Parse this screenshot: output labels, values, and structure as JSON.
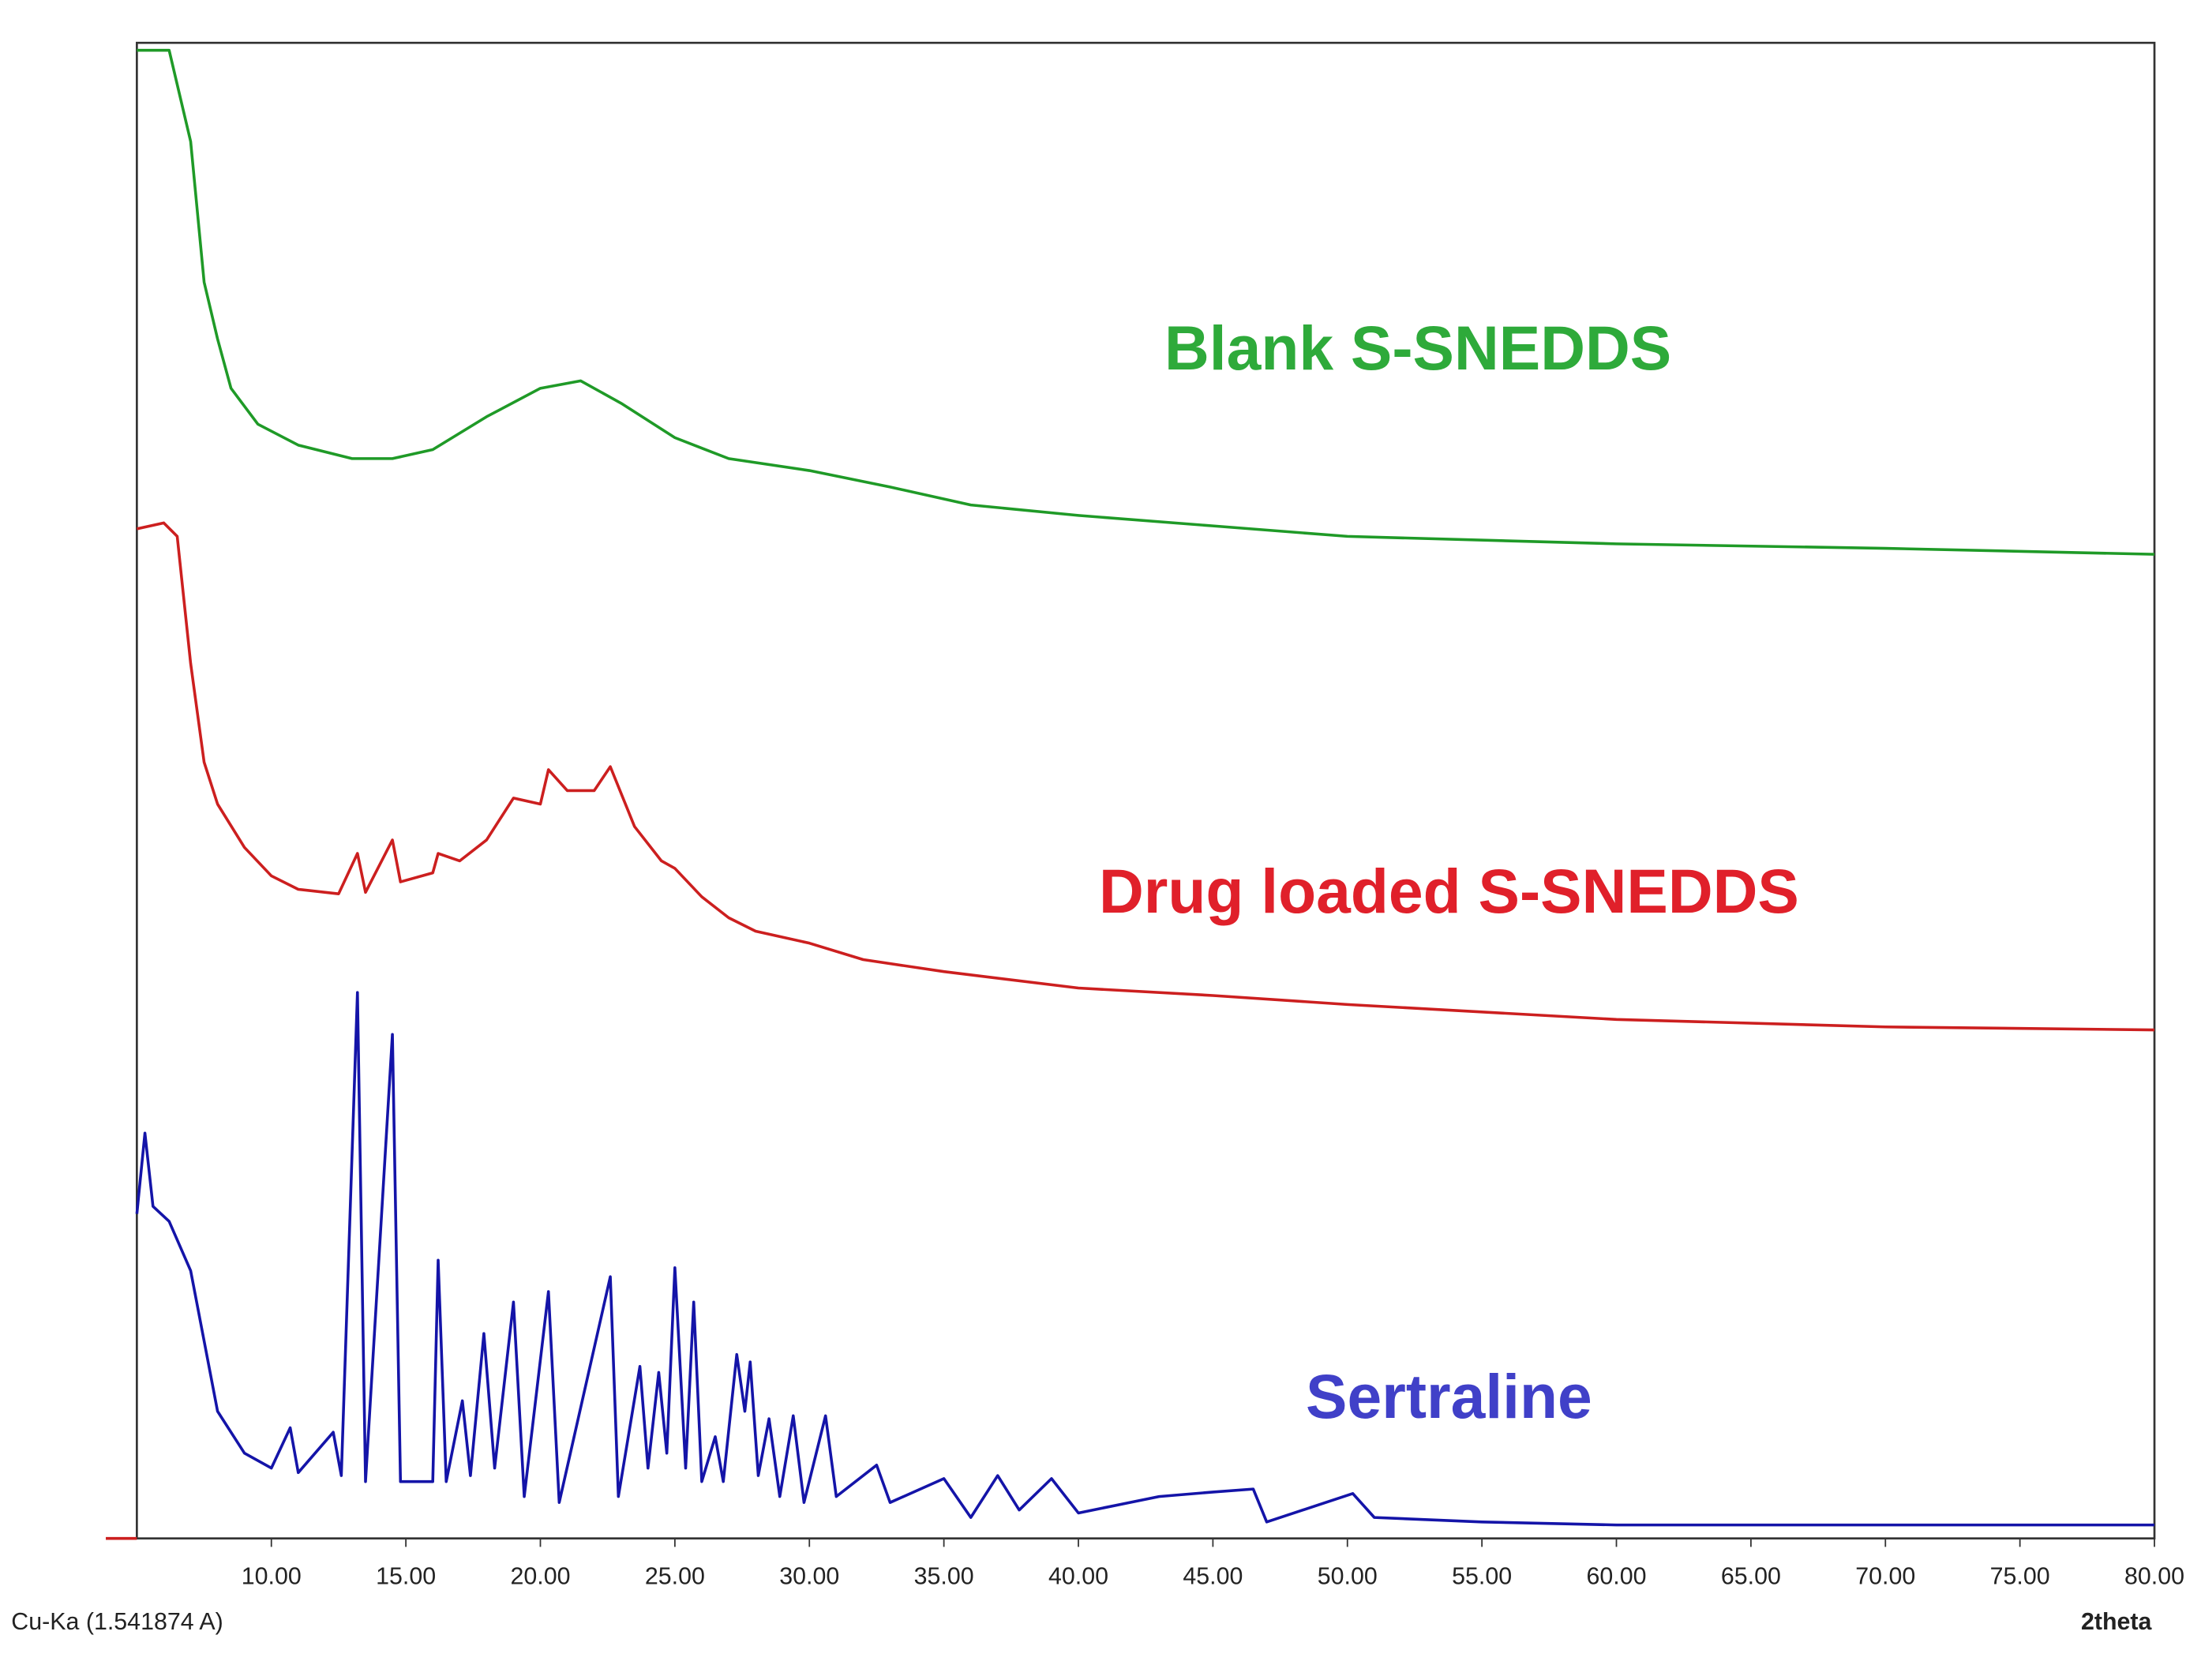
{
  "chart_data": {
    "type": "line",
    "xlabel": "2theta",
    "note": "Cu-Ka (1.541874 A)",
    "xlim": [
      5,
      80
    ],
    "ylim": [
      0,
      100
    ],
    "xticks": [
      {
        "value": 10,
        "label": "10.00"
      },
      {
        "value": 15,
        "label": "15.00"
      },
      {
        "value": 20,
        "label": "20.00"
      },
      {
        "value": 25,
        "label": "25.00"
      },
      {
        "value": 30,
        "label": "30.00"
      },
      {
        "value": 35,
        "label": "35.00"
      },
      {
        "value": 40,
        "label": "40.00"
      },
      {
        "value": 45,
        "label": "45.00"
      },
      {
        "value": 50,
        "label": "50.00"
      },
      {
        "value": 55,
        "label": "55.00"
      },
      {
        "value": 60,
        "label": "60.00"
      },
      {
        "value": 65,
        "label": "65.00"
      },
      {
        "value": 70,
        "label": "70.00"
      },
      {
        "value": 75,
        "label": "75.00"
      },
      {
        "value": 80,
        "label": "80.00"
      }
    ],
    "series": [
      {
        "name": "Blank S-SNEDDS",
        "color": "#1f9a27",
        "label_color": "#2eaa3a",
        "x": [
          5,
          6.2,
          7,
          7.5,
          8,
          8.5,
          9.5,
          11,
          13,
          14.5,
          16,
          18,
          20,
          21.5,
          23,
          25,
          27,
          30,
          33,
          36,
          40,
          45,
          50,
          60,
          70,
          80
        ],
        "values": [
          99.5,
          99.5,
          93.4,
          84.0,
          80.2,
          76.9,
          74.5,
          73.1,
          72.2,
          72.2,
          72.8,
          75.0,
          76.9,
          77.4,
          75.9,
          73.6,
          72.2,
          71.4,
          70.3,
          69.1,
          68.4,
          67.7,
          67.0,
          66.5,
          66.2,
          65.8
        ]
      },
      {
        "name": "Drug loaded S-SNEDDS",
        "color": "#cc1f1f",
        "label_color": "#e0202a",
        "x": [
          5,
          6,
          6.5,
          7,
          7.5,
          8,
          9,
          10,
          11,
          12.5,
          13.2,
          13.5,
          14.5,
          14.8,
          16,
          16.2,
          17,
          18,
          19,
          20,
          20.3,
          21,
          22,
          22.6,
          23.5,
          24.5,
          25,
          26,
          27,
          28,
          30,
          32,
          35,
          40,
          45,
          50,
          60,
          70,
          80
        ],
        "values": [
          67.5,
          67.9,
          67.0,
          58.5,
          51.9,
          49.1,
          46.2,
          44.3,
          43.4,
          43.1,
          45.8,
          43.2,
          46.7,
          43.9,
          44.5,
          45.8,
          45.3,
          46.7,
          49.5,
          49.1,
          51.4,
          50.0,
          50.0,
          51.6,
          47.6,
          45.3,
          44.8,
          42.9,
          41.5,
          40.6,
          39.8,
          38.7,
          37.9,
          36.8,
          36.3,
          35.7,
          34.7,
          34.2,
          34.0
        ]
      },
      {
        "name": "Sertraline",
        "color": "#1414a8",
        "label_color": "#4040c8",
        "x": [
          5,
          5.3,
          5.6,
          6.2,
          7,
          7.5,
          8,
          9,
          10,
          10.7,
          11,
          12.3,
          12.6,
          13.2,
          13.5,
          14.5,
          14.8,
          16,
          16.2,
          16.5,
          17.1,
          17.4,
          17.9,
          18.3,
          19,
          19.4,
          20.3,
          20.7,
          22.6,
          22.9,
          23.7,
          24,
          24.4,
          24.7,
          25,
          25.4,
          25.7,
          26,
          26.5,
          26.8,
          27.3,
          27.6,
          27.8,
          28.1,
          28.5,
          28.9,
          29.4,
          29.8,
          30.6,
          31,
          32.5,
          33,
          35,
          36,
          37,
          37.8,
          39,
          40,
          43,
          45,
          46.5,
          47,
          50.2,
          51,
          55,
          60,
          70,
          80
        ],
        "values": [
          21.7,
          27.1,
          22.2,
          21.2,
          17.9,
          13.2,
          8.5,
          5.7,
          4.7,
          7.4,
          4.4,
          7.1,
          4.2,
          36.5,
          3.8,
          33.7,
          3.8,
          3.8,
          18.6,
          3.8,
          9.2,
          4.2,
          13.7,
          4.7,
          15.8,
          2.8,
          16.5,
          2.4,
          17.5,
          2.8,
          11.5,
          4.7,
          11.1,
          5.7,
          18.1,
          4.7,
          15.8,
          3.8,
          6.8,
          3.8,
          12.3,
          8.5,
          11.8,
          4.2,
          8.0,
          2.8,
          8.2,
          2.4,
          8.2,
          2.8,
          4.9,
          2.4,
          4.0,
          1.4,
          4.2,
          1.9,
          4.0,
          1.7,
          2.8,
          3.1,
          3.3,
          1.1,
          3.0,
          1.4,
          1.1,
          0.9,
          0.9,
          0.9
        ]
      }
    ]
  }
}
